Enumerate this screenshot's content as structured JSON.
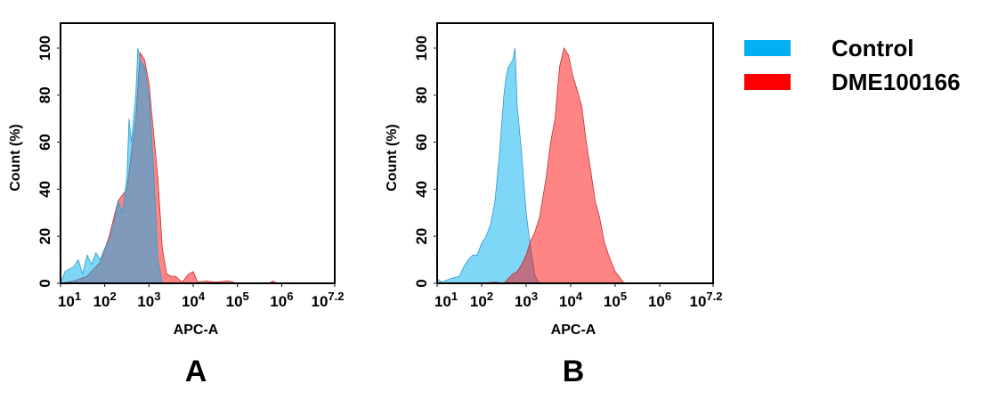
{
  "legend": [
    {
      "name": "Control",
      "color": "#00b0f0"
    },
    {
      "name": "DME100166",
      "color": "#ff0000"
    }
  ],
  "chart_data": [
    {
      "type": "area",
      "panel_label": "A",
      "xlabel": "APC-A",
      "ylabel": "Count  (%)",
      "x_scale": "log",
      "xlim_log10": [
        1,
        7.2
      ],
      "ylim": [
        0,
        110
      ],
      "x_tick_labels": [
        [
          "10",
          "1"
        ],
        [
          "10",
          "2"
        ],
        [
          "10",
          "3"
        ],
        [
          "10",
          "4"
        ],
        [
          "10",
          "5"
        ],
        [
          "10",
          "6"
        ],
        [
          "10",
          "7.2"
        ]
      ],
      "x_tick_log10": [
        1,
        2,
        3,
        4,
        5,
        6,
        7.2
      ],
      "y_ticks": [
        0,
        20,
        40,
        60,
        80,
        100
      ],
      "grid": false,
      "series": [
        {
          "name": "DME100166",
          "x_log10": [
            1.0,
            1.3,
            1.6,
            1.9,
            2.1,
            2.3,
            2.5,
            2.6,
            2.7,
            2.8,
            2.9,
            3.0,
            3.05,
            3.1,
            3.2,
            3.3,
            3.4,
            3.5,
            3.6,
            3.75,
            3.9,
            4.0,
            4.1,
            4.3,
            4.5,
            4.8,
            4.9,
            5.0,
            5.7,
            5.8,
            5.9,
            7.2
          ],
          "y": [
            0,
            1,
            3,
            9,
            20,
            35,
            40,
            55,
            70,
            98,
            95,
            85,
            75,
            65,
            45,
            15,
            4,
            3,
            3,
            0.5,
            4,
            5,
            0.5,
            1,
            0.5,
            1,
            0.5,
            0,
            0,
            1,
            0,
            0
          ]
        },
        {
          "name": "Control",
          "x_log10": [
            1.0,
            1.1,
            1.3,
            1.4,
            1.5,
            1.6,
            1.7,
            1.8,
            1.9,
            2.0,
            2.1,
            2.2,
            2.3,
            2.4,
            2.5,
            2.55,
            2.6,
            2.7,
            2.75,
            2.8,
            2.9,
            3.0,
            3.1,
            3.2,
            3.3,
            7.2
          ],
          "y": [
            0,
            5,
            7,
            10,
            4,
            12,
            8,
            13,
            10,
            15,
            18,
            25,
            35,
            30,
            45,
            70,
            60,
            80,
            100,
            95,
            92,
            80,
            50,
            10,
            0,
            0
          ]
        }
      ]
    },
    {
      "type": "area",
      "panel_label": "B",
      "xlabel": "APC-A",
      "ylabel": "Count  (%)",
      "x_scale": "log",
      "xlim_log10": [
        1,
        7.2
      ],
      "ylim": [
        0,
        110
      ],
      "x_tick_labels": [
        [
          "10",
          "1"
        ],
        [
          "10",
          "2"
        ],
        [
          "10",
          "3"
        ],
        [
          "10",
          "4"
        ],
        [
          "10",
          "5"
        ],
        [
          "10",
          "6"
        ],
        [
          "10",
          "7.2"
        ]
      ],
      "x_tick_log10": [
        1,
        2,
        3,
        4,
        5,
        6,
        7.2
      ],
      "y_ticks": [
        0,
        20,
        40,
        60,
        80,
        100
      ],
      "grid": false,
      "series": [
        {
          "name": "Control",
          "x_log10": [
            1.0,
            1.1,
            1.3,
            1.5,
            1.6,
            1.7,
            1.8,
            1.9,
            2.0,
            2.1,
            2.2,
            2.3,
            2.4,
            2.5,
            2.55,
            2.6,
            2.7,
            2.75,
            2.8,
            2.9,
            3.0,
            3.1,
            3.2,
            3.3,
            7.2
          ],
          "y": [
            2,
            0.5,
            2,
            3,
            7,
            10,
            12,
            12,
            17,
            20,
            25,
            35,
            55,
            80,
            88,
            92,
            95,
            100,
            75,
            55,
            30,
            15,
            3,
            0,
            0
          ]
        },
        {
          "name": "DME100166",
          "x_log10": [
            1.0,
            2.0,
            2.3,
            2.5,
            2.7,
            2.8,
            2.9,
            3.0,
            3.1,
            3.2,
            3.3,
            3.45,
            3.55,
            3.65,
            3.75,
            3.85,
            3.95,
            4.05,
            4.15,
            4.25,
            4.35,
            4.45,
            4.55,
            4.65,
            4.75,
            4.85,
            5.0,
            5.2,
            7.2
          ],
          "y": [
            0,
            0,
            0.5,
            0,
            4,
            5,
            8,
            12,
            18,
            22,
            28,
            45,
            60,
            70,
            92,
            100,
            97,
            88,
            82,
            75,
            60,
            48,
            35,
            28,
            18,
            12,
            5,
            0,
            0
          ]
        }
      ]
    }
  ]
}
